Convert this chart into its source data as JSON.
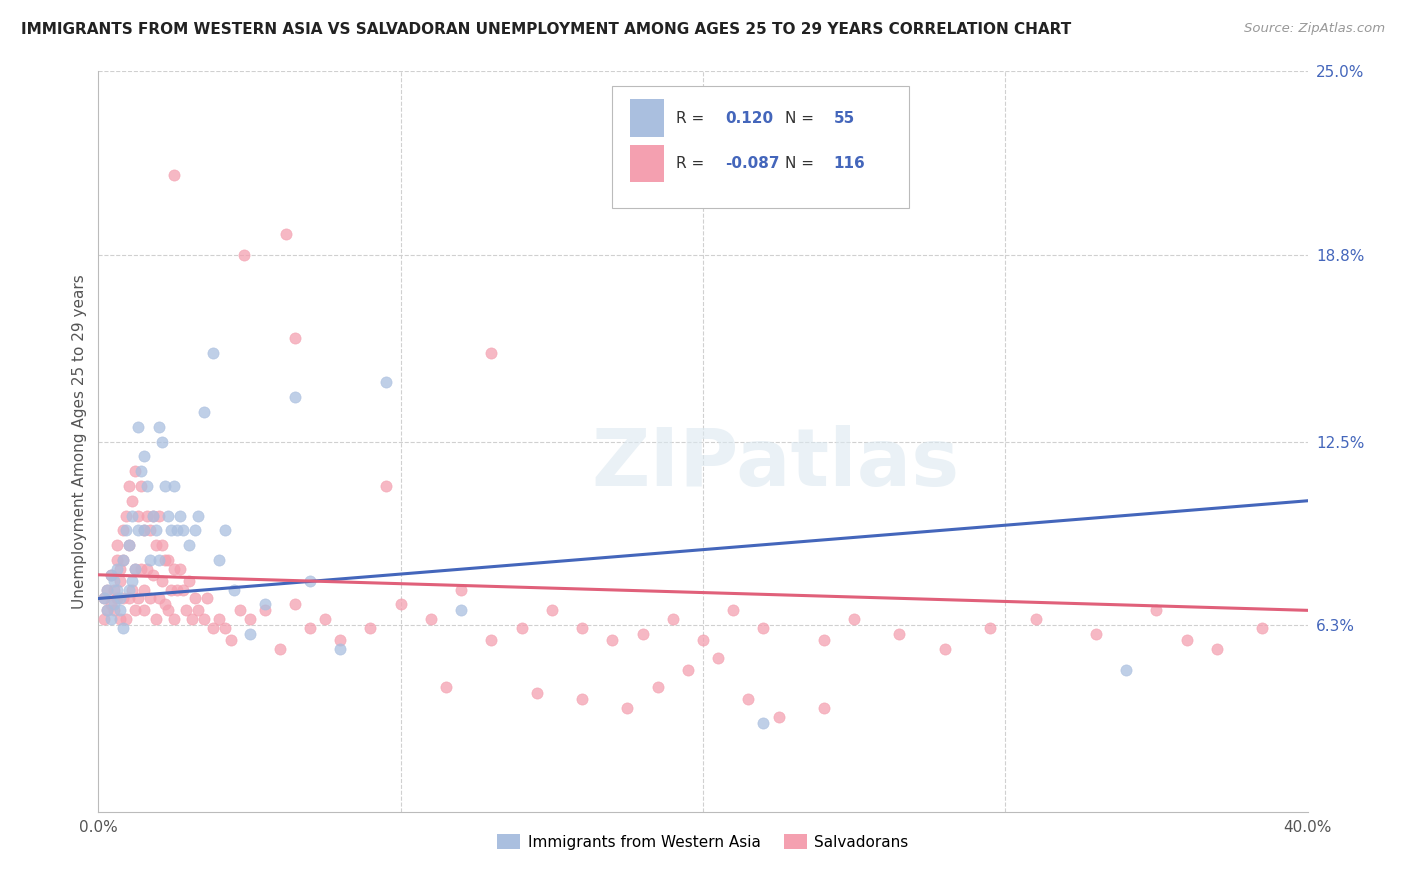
{
  "title": "IMMIGRANTS FROM WESTERN ASIA VS SALVADORAN UNEMPLOYMENT AMONG AGES 25 TO 29 YEARS CORRELATION CHART",
  "source": "Source: ZipAtlas.com",
  "ylabel": "Unemployment Among Ages 25 to 29 years",
  "xlim": [
    0.0,
    0.4
  ],
  "ylim": [
    0.0,
    0.25
  ],
  "y_tick_labels_right": [
    "25.0%",
    "18.8%",
    "12.5%",
    "6.3%"
  ],
  "y_tick_values_right": [
    0.25,
    0.188,
    0.125,
    0.063
  ],
  "grid_color": "#d0d0d0",
  "background_color": "#ffffff",
  "blue_color": "#aabfdf",
  "pink_color": "#f4a0b0",
  "blue_line_color": "#4466bb",
  "pink_line_color": "#e0607a",
  "legend_r_blue": "0.120",
  "legend_n_blue": "55",
  "legend_r_pink": "-0.087",
  "legend_n_pink": "116",
  "legend_label_blue": "Immigrants from Western Asia",
  "legend_label_pink": "Salvadorans",
  "watermark": "ZIPatlas",
  "blue_line_start": 0.072,
  "blue_line_end": 0.105,
  "pink_line_start": 0.08,
  "pink_line_end": 0.068,
  "blue_scatter_x": [
    0.002,
    0.003,
    0.003,
    0.004,
    0.004,
    0.005,
    0.005,
    0.006,
    0.006,
    0.007,
    0.007,
    0.008,
    0.008,
    0.009,
    0.01,
    0.01,
    0.011,
    0.011,
    0.012,
    0.013,
    0.013,
    0.014,
    0.015,
    0.015,
    0.016,
    0.017,
    0.018,
    0.019,
    0.02,
    0.02,
    0.021,
    0.022,
    0.023,
    0.024,
    0.025,
    0.026,
    0.027,
    0.028,
    0.03,
    0.032,
    0.033,
    0.035,
    0.038,
    0.04,
    0.042,
    0.045,
    0.05,
    0.055,
    0.065,
    0.07,
    0.08,
    0.095,
    0.12,
    0.22,
    0.34
  ],
  "blue_scatter_y": [
    0.072,
    0.068,
    0.075,
    0.065,
    0.08,
    0.07,
    0.078,
    0.075,
    0.082,
    0.068,
    0.072,
    0.085,
    0.062,
    0.095,
    0.09,
    0.075,
    0.1,
    0.078,
    0.082,
    0.095,
    0.13,
    0.115,
    0.12,
    0.095,
    0.11,
    0.085,
    0.1,
    0.095,
    0.13,
    0.085,
    0.125,
    0.11,
    0.1,
    0.095,
    0.11,
    0.095,
    0.1,
    0.095,
    0.09,
    0.095,
    0.1,
    0.135,
    0.155,
    0.085,
    0.095,
    0.075,
    0.06,
    0.07,
    0.14,
    0.078,
    0.055,
    0.145,
    0.068,
    0.03,
    0.048
  ],
  "pink_scatter_x": [
    0.002,
    0.002,
    0.003,
    0.003,
    0.004,
    0.004,
    0.005,
    0.005,
    0.006,
    0.006,
    0.006,
    0.007,
    0.007,
    0.007,
    0.008,
    0.008,
    0.008,
    0.009,
    0.009,
    0.01,
    0.01,
    0.01,
    0.011,
    0.011,
    0.012,
    0.012,
    0.012,
    0.013,
    0.013,
    0.014,
    0.014,
    0.015,
    0.015,
    0.015,
    0.016,
    0.016,
    0.017,
    0.017,
    0.018,
    0.018,
    0.019,
    0.019,
    0.02,
    0.02,
    0.021,
    0.021,
    0.022,
    0.022,
    0.023,
    0.023,
    0.024,
    0.025,
    0.025,
    0.026,
    0.027,
    0.028,
    0.029,
    0.03,
    0.031,
    0.032,
    0.033,
    0.035,
    0.036,
    0.038,
    0.04,
    0.042,
    0.044,
    0.047,
    0.05,
    0.055,
    0.06,
    0.065,
    0.07,
    0.075,
    0.08,
    0.09,
    0.1,
    0.11,
    0.12,
    0.13,
    0.14,
    0.15,
    0.16,
    0.17,
    0.18,
    0.19,
    0.2,
    0.21,
    0.22,
    0.24,
    0.25,
    0.265,
    0.28,
    0.295,
    0.31,
    0.33,
    0.35,
    0.36,
    0.37,
    0.385,
    0.025,
    0.048,
    0.062,
    0.065,
    0.095,
    0.115,
    0.13,
    0.145,
    0.16,
    0.175,
    0.185,
    0.195,
    0.205,
    0.215,
    0.225,
    0.24
  ],
  "pink_scatter_y": [
    0.072,
    0.065,
    0.075,
    0.068,
    0.08,
    0.07,
    0.075,
    0.068,
    0.085,
    0.072,
    0.09,
    0.078,
    0.082,
    0.065,
    0.095,
    0.085,
    0.072,
    0.1,
    0.065,
    0.11,
    0.09,
    0.072,
    0.105,
    0.075,
    0.115,
    0.082,
    0.068,
    0.1,
    0.072,
    0.11,
    0.082,
    0.095,
    0.075,
    0.068,
    0.1,
    0.082,
    0.095,
    0.072,
    0.1,
    0.08,
    0.09,
    0.065,
    0.1,
    0.072,
    0.09,
    0.078,
    0.085,
    0.07,
    0.085,
    0.068,
    0.075,
    0.082,
    0.065,
    0.075,
    0.082,
    0.075,
    0.068,
    0.078,
    0.065,
    0.072,
    0.068,
    0.065,
    0.072,
    0.062,
    0.065,
    0.062,
    0.058,
    0.068,
    0.065,
    0.068,
    0.055,
    0.07,
    0.062,
    0.065,
    0.058,
    0.062,
    0.07,
    0.065,
    0.075,
    0.058,
    0.062,
    0.068,
    0.062,
    0.058,
    0.06,
    0.065,
    0.058,
    0.068,
    0.062,
    0.058,
    0.065,
    0.06,
    0.055,
    0.062,
    0.065,
    0.06,
    0.068,
    0.058,
    0.055,
    0.062,
    0.215,
    0.188,
    0.195,
    0.16,
    0.11,
    0.042,
    0.155,
    0.04,
    0.038,
    0.035,
    0.042,
    0.048,
    0.052,
    0.038,
    0.032,
    0.035
  ]
}
